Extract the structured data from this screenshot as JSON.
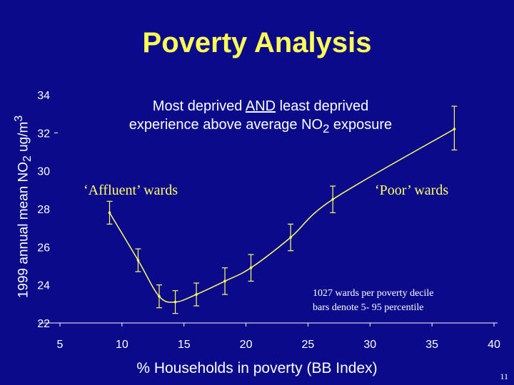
{
  "slide": {
    "title": "Poverty Analysis",
    "page_number": "11"
  },
  "colors": {
    "background": "#0a0a8a",
    "title": "#ffff55",
    "line": "#ffff66",
    "errorbar": "#ffff66",
    "text": "#ffffff"
  },
  "annotations": {
    "headline_pre": "Most deprived ",
    "headline_and": "AND",
    "headline_mid": " least deprived",
    "headline_line2_pre": "experience above average NO",
    "headline_line2_sub": "2",
    "headline_line2_post": " exposure",
    "affluent": "‘Affluent’ wards",
    "poor": "‘Poor’ wards",
    "note_line1": "1027 wards per poverty decile",
    "note_line2": "bars denote 5- 95 percentile"
  },
  "chart_data": {
    "type": "line",
    "ylabel_pre": "1999 annual mean NO",
    "ylabel_sub": "2",
    "ylabel_mid": " ug/m",
    "ylabel_sup": "3",
    "xlabel": "% Households in poverty (BB Index)",
    "xlim": [
      5,
      40
    ],
    "ylim": [
      22,
      34
    ],
    "xticks": [
      "5",
      "10",
      "15",
      "20",
      "25",
      "30",
      "35",
      "40"
    ],
    "yticks": [
      "22",
      "24",
      "26",
      "28",
      "30",
      "32",
      "34"
    ],
    "points": [
      {
        "x": 9.0,
        "y": 27.8,
        "low": 27.2,
        "high": 28.4
      },
      {
        "x": 11.3,
        "y": 25.3,
        "low": 24.7,
        "high": 25.9
      },
      {
        "x": 13.0,
        "y": 23.4,
        "low": 22.8,
        "high": 24.0
      },
      {
        "x": 14.3,
        "y": 23.1,
        "low": 22.5,
        "high": 23.7
      },
      {
        "x": 16.0,
        "y": 23.5,
        "low": 22.9,
        "high": 24.1
      },
      {
        "x": 18.3,
        "y": 24.2,
        "low": 23.5,
        "high": 24.9
      },
      {
        "x": 20.4,
        "y": 24.9,
        "low": 24.2,
        "high": 25.6
      },
      {
        "x": 23.6,
        "y": 26.5,
        "low": 25.8,
        "high": 27.2
      },
      {
        "x": 27.0,
        "y": 28.5,
        "low": 27.8,
        "high": 29.2
      },
      {
        "x": 36.8,
        "y": 32.2,
        "low": 31.1,
        "high": 33.4
      }
    ]
  }
}
